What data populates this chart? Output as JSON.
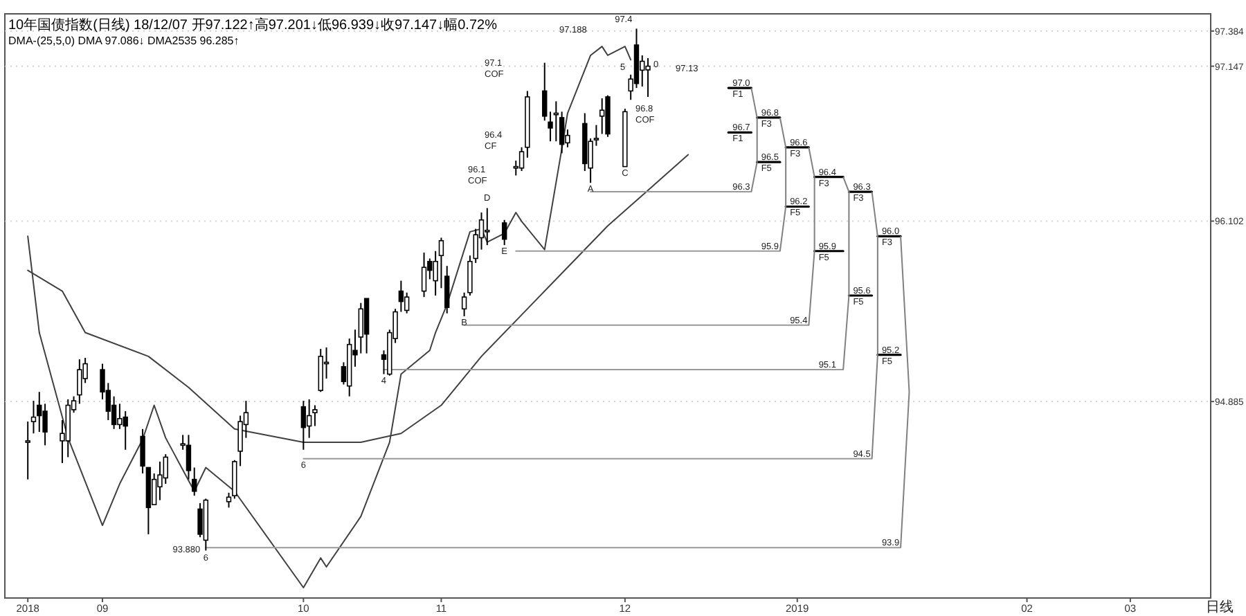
{
  "chart_data": {
    "type": "candlestick",
    "title": "10年国债指数(日线) 18/12/07 开97.122↑高97.201↓低96.939↓收97.147↓幅0.72%",
    "subtitle": "DMA-(25,5,0) DMA 97.086↓ DMA2535 96.285↑",
    "x": [
      "2018-08-21",
      "2018-08-22",
      "2018-08-23",
      "2018-08-24",
      "2018-08-27",
      "2018-08-28",
      "2018-08-29",
      "2018-08-30",
      "2018-08-31",
      "2018-09-03",
      "2018-09-04",
      "2018-09-05",
      "2018-09-06",
      "2018-09-07",
      "2018-09-10",
      "2018-09-11",
      "2018-09-12",
      "2018-09-13",
      "2018-09-14",
      "2018-09-17",
      "2018-09-18",
      "2018-09-19",
      "2018-09-20",
      "2018-09-21",
      "2018-09-25",
      "2018-09-26",
      "2018-09-27",
      "2018-09-28",
      "2018-10-08",
      "2018-10-09",
      "2018-10-10",
      "2018-10-11",
      "2018-10-12",
      "2018-10-15",
      "2018-10-16",
      "2018-10-17",
      "2018-10-18",
      "2018-10-19",
      "2018-10-22",
      "2018-10-23",
      "2018-10-24",
      "2018-10-25",
      "2018-10-26",
      "2018-10-29",
      "2018-10-30",
      "2018-10-31",
      "2018-11-01",
      "2018-11-02",
      "2018-11-05",
      "2018-11-06",
      "2018-11-07",
      "2018-11-08",
      "2018-11-09",
      "2018-11-12",
      "2018-11-14",
      "2018-11-15",
      "2018-11-16",
      "2018-11-19",
      "2018-11-20",
      "2018-11-21",
      "2018-11-22",
      "2018-11-23",
      "2018-11-26",
      "2018-11-27",
      "2018-11-28",
      "2018-11-29",
      "2018-11-30",
      "2018-12-03",
      "2018-12-04",
      "2018-12-05",
      "2018-12-06",
      "2018-12-07"
    ],
    "ohlc": [
      [
        94.61,
        94.75,
        94.36,
        94.62
      ],
      [
        94.75,
        94.89,
        94.67,
        94.78
      ],
      [
        94.86,
        94.95,
        94.68,
        94.79
      ],
      [
        94.82,
        94.87,
        94.59,
        94.68
      ],
      [
        94.62,
        94.76,
        94.47,
        94.67
      ],
      [
        94.62,
        94.9,
        94.51,
        94.86
      ],
      [
        94.83,
        94.92,
        94.81,
        94.89
      ],
      [
        94.93,
        95.17,
        94.87,
        95.1
      ],
      [
        95.04,
        95.18,
        95.01,
        95.14
      ],
      [
        95.1,
        95.14,
        94.9,
        94.95
      ],
      [
        94.96,
        95.01,
        94.76,
        94.82
      ],
      [
        94.86,
        94.92,
        94.7,
        94.73
      ],
      [
        94.73,
        94.87,
        94.7,
        94.77
      ],
      [
        94.78,
        94.82,
        94.56,
        94.72
      ],
      [
        94.65,
        94.7,
        94.4,
        94.45
      ],
      [
        94.44,
        94.44,
        93.99,
        94.17
      ],
      [
        94.19,
        94.4,
        94.19,
        94.36
      ],
      [
        94.31,
        94.48,
        94.22,
        94.39
      ],
      [
        94.37,
        94.53,
        94.33,
        94.51
      ],
      [
        94.59,
        94.66,
        94.56,
        94.6
      ],
      [
        94.59,
        94.66,
        94.36,
        94.42
      ],
      [
        94.36,
        94.44,
        94.25,
        94.28
      ],
      [
        94.16,
        94.2,
        93.97,
        93.99
      ],
      [
        93.95,
        94.23,
        93.88,
        94.22
      ],
      [
        94.21,
        94.27,
        94.17,
        94.24
      ],
      [
        94.25,
        94.49,
        94.23,
        94.48
      ],
      [
        94.55,
        94.79,
        94.45,
        94.75
      ],
      [
        94.73,
        94.89,
        94.64,
        94.81
      ],
      [
        94.85,
        94.89,
        94.56,
        94.71
      ],
      [
        94.72,
        94.9,
        94.64,
        94.79
      ],
      [
        94.81,
        94.86,
        94.72,
        94.83
      ],
      [
        94.96,
        95.24,
        94.95,
        95.19
      ],
      [
        95.14,
        95.25,
        95.04,
        95.15
      ],
      [
        95.12,
        95.15,
        95.0,
        95.02
      ],
      [
        94.99,
        95.31,
        94.92,
        95.27
      ],
      [
        95.23,
        95.37,
        95.12,
        95.2
      ],
      [
        95.32,
        95.55,
        95.21,
        95.51
      ],
      [
        95.58,
        95.58,
        95.21,
        95.34
      ],
      [
        95.2,
        95.23,
        95.07,
        95.17
      ],
      [
        95.07,
        95.37,
        95.06,
        95.35
      ],
      [
        95.31,
        95.51,
        95.28,
        95.49
      ],
      [
        95.63,
        95.7,
        95.49,
        95.56
      ],
      [
        95.5,
        95.62,
        95.48,
        95.59
      ],
      [
        95.63,
        95.89,
        95.59,
        95.79
      ],
      [
        95.83,
        95.85,
        95.71,
        95.77
      ],
      [
        95.7,
        95.9,
        95.6,
        95.83
      ],
      [
        95.87,
        95.99,
        95.65,
        95.97
      ],
      [
        95.73,
        95.8,
        95.48,
        95.52
      ],
      [
        95.51,
        95.62,
        95.46,
        95.59
      ],
      [
        95.62,
        95.87,
        95.6,
        95.83
      ],
      [
        95.85,
        96.05,
        95.82,
        96.01
      ],
      [
        95.99,
        96.16,
        95.91,
        96.11
      ],
      [
        96.03,
        96.19,
        95.94,
        96.04
      ],
      [
        96.09,
        96.11,
        95.94,
        95.98
      ],
      [
        96.46,
        96.51,
        96.41,
        96.47
      ],
      [
        96.46,
        96.6,
        96.44,
        96.57
      ],
      [
        96.6,
        96.98,
        96.53,
        96.94
      ],
      [
        96.98,
        97.17,
        96.78,
        96.81
      ],
      [
        96.77,
        96.84,
        96.64,
        96.73
      ],
      [
        96.82,
        96.91,
        96.64,
        96.83
      ],
      [
        96.8,
        96.84,
        96.56,
        96.62
      ],
      [
        96.63,
        96.72,
        96.6,
        96.68
      ],
      [
        96.76,
        96.83,
        96.44,
        96.49
      ],
      [
        96.46,
        96.66,
        96.36,
        96.64
      ],
      [
        96.65,
        96.75,
        96.61,
        96.66
      ],
      [
        96.81,
        96.93,
        96.69,
        96.85
      ],
      [
        96.94,
        96.95,
        96.67,
        96.69
      ],
      [
        96.47,
        96.86,
        96.47,
        96.84
      ],
      [
        96.98,
        97.09,
        96.92,
        97.06
      ],
      [
        97.29,
        97.4,
        97.0,
        97.03
      ],
      [
        97.12,
        97.22,
        97.01,
        97.18
      ],
      [
        97.122,
        97.201,
        96.94,
        97.147
      ]
    ],
    "xlim": [
      "2018-08-17",
      "2019-03-15"
    ],
    "xticks": [
      {
        "value": "2018-08-21",
        "label": "2018"
      },
      {
        "value": "2018-09-03",
        "label": "09"
      },
      {
        "value": "2018-10-08",
        "label": "10"
      },
      {
        "value": "2018-11-01",
        "label": "11"
      },
      {
        "value": "2018-12-03",
        "label": "12"
      },
      {
        "value": "2019-01-02",
        "label": "2019"
      },
      {
        "value": "2019-02-11",
        "label": "02"
      },
      {
        "value": "2019-03-01",
        "label": "03"
      }
    ],
    "ylim": [
      93.56,
      97.5
    ],
    "yticks": [
      97.384,
      97.147,
      96.102,
      94.885
    ],
    "grid": "y",
    "series": [
      {
        "type": "line",
        "color": "#404040",
        "x": [
          "2018-08-21",
          "2018-08-23",
          "2018-08-28",
          "2018-09-03",
          "2018-09-06",
          "2018-09-10",
          "2018-09-12",
          "2018-09-14",
          "2018-09-19",
          "2018-09-21",
          "2018-09-26",
          "2018-10-08",
          "2018-10-11",
          "2018-10-12",
          "2018-10-18",
          "2018-10-23",
          "2018-10-25",
          "2018-10-30",
          "2018-10-31",
          "2018-11-02",
          "2018-11-06",
          "2018-11-08",
          "2018-11-09",
          "2018-11-12",
          "2018-11-14",
          "2018-11-15",
          "2018-11-19",
          "2018-11-22",
          "2018-11-23",
          "2018-11-27",
          "2018-11-29",
          "2018-11-30",
          "2018-12-03",
          "2018-12-04"
        ],
        "values": [
          96.0,
          95.35,
          94.64,
          94.05,
          94.33,
          94.63,
          94.86,
          94.64,
          94.28,
          94.44,
          94.28,
          93.63,
          93.83,
          93.77,
          94.11,
          94.61,
          95.07,
          95.23,
          95.35,
          95.54,
          96.03,
          96.05,
          95.96,
          96.02,
          96.16,
          96.1,
          95.91,
          96.59,
          96.83,
          97.22,
          97.28,
          97.22,
          97.28,
          97.19
        ]
      },
      {
        "type": "line",
        "color": "#404040",
        "x": [
          "2018-08-21",
          "2018-08-27",
          "2018-08-31",
          "2018-09-11",
          "2018-09-18",
          "2018-09-26",
          "2018-10-08",
          "2018-10-18",
          "2018-10-25",
          "2018-11-01",
          "2018-11-08",
          "2018-11-15",
          "2018-11-23",
          "2018-11-30",
          "2018-12-07",
          "2018-12-14"
        ],
        "values": [
          95.77,
          95.63,
          95.35,
          95.19,
          94.98,
          94.7,
          94.61,
          94.61,
          94.67,
          94.86,
          95.19,
          95.47,
          95.79,
          96.07,
          96.31,
          96.55
        ]
      },
      {
        "type": "line",
        "color": "#999999",
        "x": [
          "2018-11-27",
          "2018-12-25"
        ],
        "values": [
          96.3,
          96.3
        ]
      },
      {
        "type": "line",
        "color": "#999999",
        "x": [
          "2018-11-14",
          "2018-12-30"
        ],
        "values": [
          95.9,
          95.9
        ]
      },
      {
        "type": "line",
        "color": "#999999",
        "x": [
          "2018-11-05",
          "2019-01-04"
        ],
        "values": [
          95.4,
          95.4
        ]
      },
      {
        "type": "line",
        "color": "#999999",
        "x": [
          "2018-10-22",
          "2019-01-10"
        ],
        "values": [
          95.1,
          95.1
        ]
      },
      {
        "type": "line",
        "color": "#999999",
        "x": [
          "2018-10-08",
          "2019-01-15"
        ],
        "values": [
          94.5,
          94.5
        ]
      },
      {
        "type": "line",
        "color": "#999999",
        "x": [
          "2018-09-21",
          "2019-01-20"
        ],
        "values": [
          93.9,
          93.9
        ]
      },
      {
        "type": "line",
        "color": "#000000",
        "x": [
          "2018-12-21",
          "2018-12-25"
        ],
        "values": [
          97.0,
          97.0
        ]
      },
      {
        "type": "line",
        "color": "#000000",
        "x": [
          "2018-12-21",
          "2018-12-25"
        ],
        "values": [
          96.7,
          96.7
        ]
      },
      {
        "type": "line",
        "color": "#000000",
        "x": [
          "2018-12-26",
          "2018-12-30"
        ],
        "values": [
          96.8,
          96.8
        ]
      },
      {
        "type": "line",
        "color": "#000000",
        "x": [
          "2018-12-26",
          "2018-12-30"
        ],
        "values": [
          96.5,
          96.5
        ]
      },
      {
        "type": "line",
        "color": "#000000",
        "x": [
          "2018-12-31",
          "2019-01-04"
        ],
        "values": [
          96.6,
          96.6
        ]
      },
      {
        "type": "line",
        "color": "#000000",
        "x": [
          "2018-12-31",
          "2019-01-04"
        ],
        "values": [
          96.2,
          96.2
        ]
      },
      {
        "type": "line",
        "color": "#000000",
        "x": [
          "2019-01-05",
          "2019-01-10"
        ],
        "values": [
          96.4,
          96.4
        ]
      },
      {
        "type": "line",
        "color": "#000000",
        "x": [
          "2019-01-05",
          "2019-01-10"
        ],
        "values": [
          95.9,
          95.9
        ]
      },
      {
        "type": "line",
        "color": "#000000",
        "x": [
          "2019-01-11",
          "2019-01-15"
        ],
        "values": [
          96.3,
          96.3
        ]
      },
      {
        "type": "line",
        "color": "#000000",
        "x": [
          "2019-01-11",
          "2019-01-15"
        ],
        "values": [
          95.6,
          95.6
        ]
      },
      {
        "type": "line",
        "color": "#000000",
        "x": [
          "2019-01-16",
          "2019-01-20"
        ],
        "values": [
          96.0,
          96.0
        ]
      },
      {
        "type": "line",
        "color": "#000000",
        "x": [
          "2019-01-16",
          "2019-01-20"
        ],
        "values": [
          95.2,
          95.2
        ]
      }
    ],
    "annotations": [
      {
        "text": "93.880",
        "x": "2018-09-21",
        "y": 93.88
      },
      {
        "text": "97.4",
        "x": "2018-12-05",
        "y": 97.4
      },
      "97.188",
      "97.13",
      "97.1\nCOF",
      "96.4\nCF",
      "96.1\nCOF",
      "96.8\nCOF",
      {
        "text": "A",
        "x": "2018-11-27",
        "y": 96.36
      },
      {
        "text": "B",
        "x": "2018-11-05",
        "y": 95.46
      },
      {
        "text": "C",
        "x": "2018-12-03",
        "y": 96.47
      },
      {
        "text": "D",
        "x": "2018-11-09",
        "y": 96.19
      },
      {
        "text": "E",
        "x": "2018-11-12",
        "y": 95.94
      },
      {
        "text": "4",
        "x": "2018-10-22",
        "y": 95.07
      },
      {
        "text": "5",
        "x": "2018-12-04",
        "y": 97.09
      },
      {
        "text": "0",
        "x": "2018-12-07",
        "y": 97.147
      },
      {
        "text": "6",
        "x": "2018-09-21",
        "y": 93.88
      },
      {
        "text": "6",
        "x": "2018-10-08",
        "y": 94.5
      },
      {
        "text": "97.0\nF1",
        "x": "2018-12-21",
        "y": 97.0
      },
      {
        "text": "96.7\nF1",
        "x": "2018-12-21",
        "y": 96.7
      },
      {
        "text": "96.3",
        "x": "2018-12-21",
        "y": 96.3
      },
      {
        "text": "96.8\nF3",
        "x": "2018-12-26",
        "y": 96.8
      },
      {
        "text": "96.5\nF5",
        "x": "2018-12-26",
        "y": 96.5
      },
      {
        "text": "95.9",
        "x": "2018-12-26",
        "y": 95.9
      },
      {
        "text": "96.6\nF3",
        "x": "2018-12-31",
        "y": 96.6
      },
      {
        "text": "96.2\nF5",
        "x": "2018-12-31",
        "y": 96.2
      },
      {
        "text": "95.4",
        "x": "2018-12-31",
        "y": 95.4
      },
      {
        "text": "96.4\nF3",
        "x": "2019-01-05",
        "y": 96.4
      },
      {
        "text": "95.9\nF5",
        "x": "2019-01-05",
        "y": 95.9
      },
      {
        "text": "95.1",
        "x": "2019-01-05",
        "y": 95.1
      },
      {
        "text": "96.3\nF3",
        "x": "2019-01-11",
        "y": 96.3
      },
      {
        "text": "95.6\nF5",
        "x": "2019-01-11",
        "y": 95.6
      },
      {
        "text": "94.5",
        "x": "2019-01-11",
        "y": 94.5
      },
      {
        "text": "96.0\nF3",
        "x": "2019-01-16",
        "y": 96.0
      },
      {
        "text": "95.2\nF5",
        "x": "2019-01-16",
        "y": 95.2
      },
      {
        "text": "93.9",
        "x": "2019-01-16",
        "y": 93.9
      },
      "日线"
    ]
  }
}
